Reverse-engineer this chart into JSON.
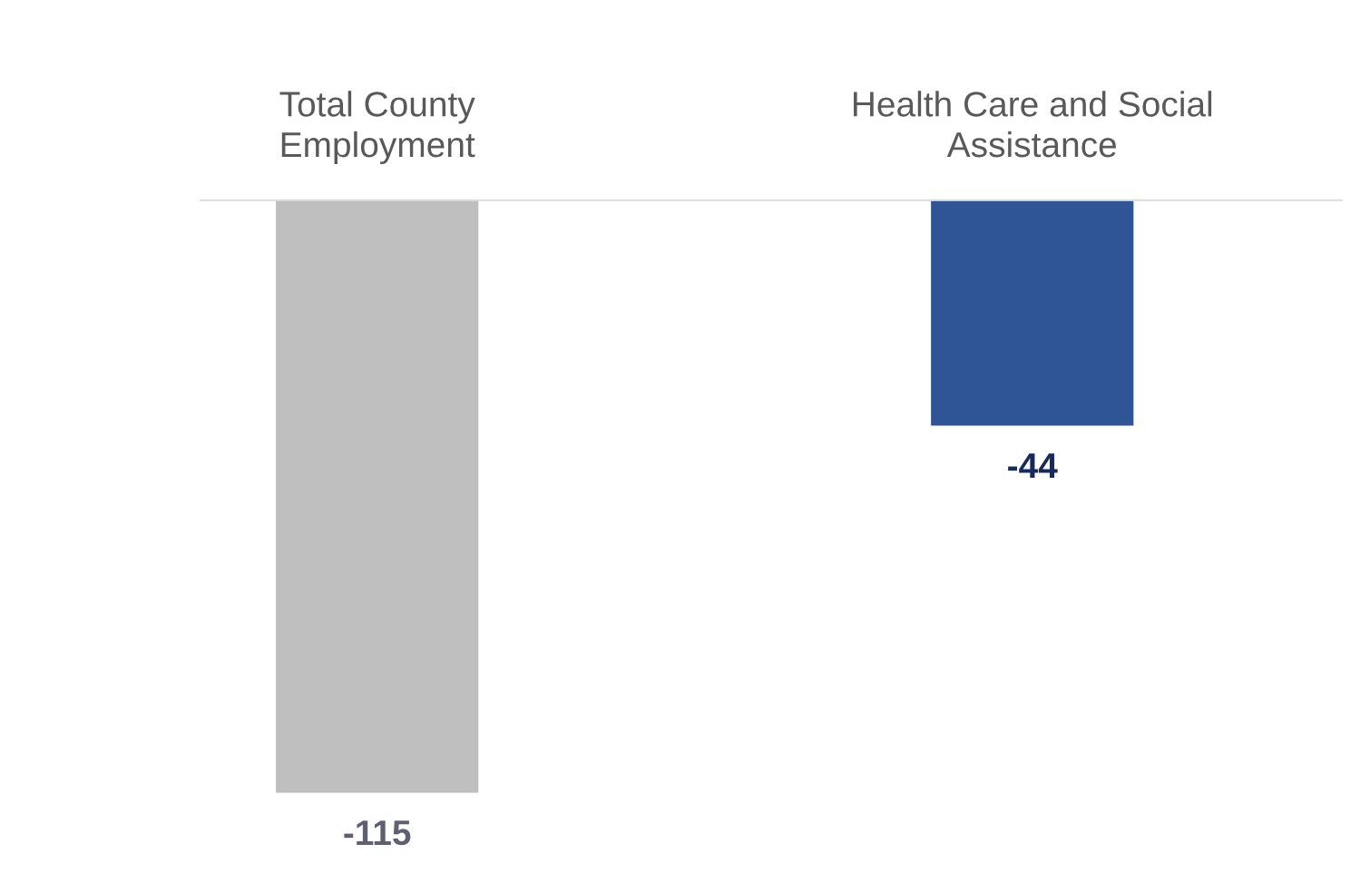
{
  "chart_data": {
    "type": "bar",
    "categories": [
      "Total County\nEmployment",
      "Health Care and Social\nAssistance"
    ],
    "values": [
      -115,
      -44
    ],
    "colors": [
      "#bfbfbf",
      "#2f5597"
    ],
    "data_labels": true
  }
}
